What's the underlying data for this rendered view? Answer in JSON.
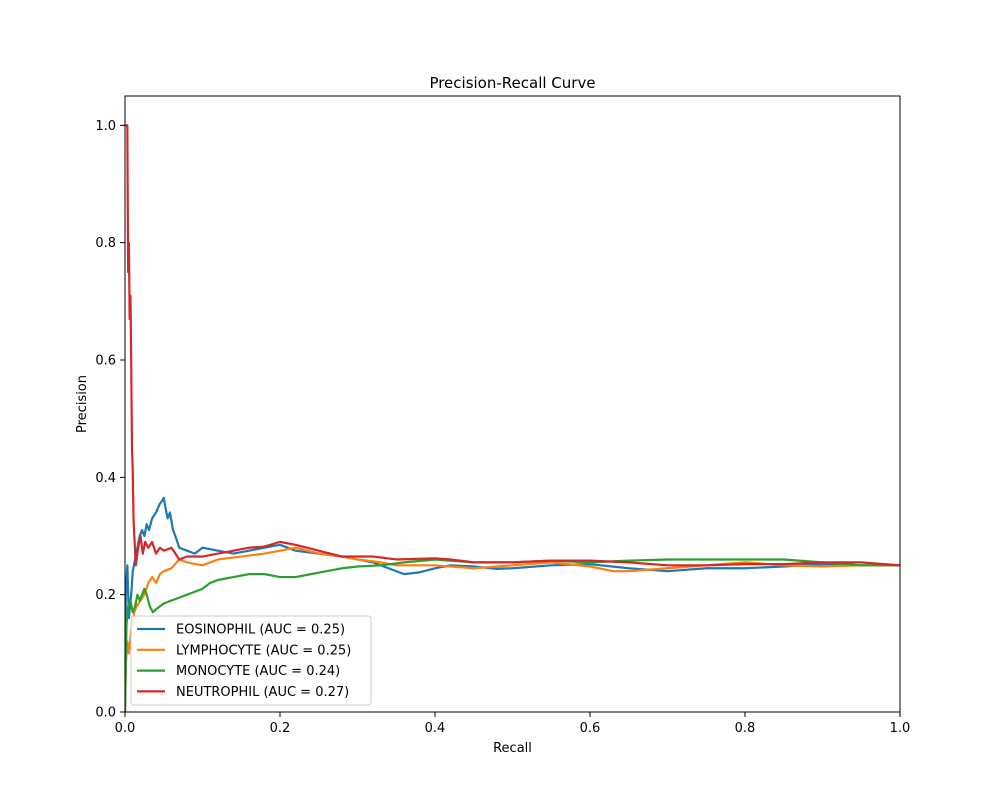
{
  "chart_data": {
    "type": "line",
    "title": "Precision-Recall Curve",
    "xlabel": "Recall",
    "ylabel": "Precision",
    "xlim": [
      0.0,
      1.0
    ],
    "ylim": [
      0.0,
      1.05
    ],
    "xticks": [
      "0.0",
      "0.2",
      "0.4",
      "0.6",
      "0.8",
      "1.0"
    ],
    "yticks": [
      "0.0",
      "0.2",
      "0.4",
      "0.6",
      "0.8",
      "1.0"
    ],
    "grid": false,
    "legend_position": "lower-left",
    "series": [
      {
        "name": "EOSINOPHIL (AUC = 0.25)",
        "color": "#1f77b4",
        "points": [
          [
            0.0,
            0.0
          ],
          [
            0.001,
            0.2
          ],
          [
            0.003,
            0.25
          ],
          [
            0.005,
            0.16
          ],
          [
            0.008,
            0.2
          ],
          [
            0.01,
            0.24
          ],
          [
            0.013,
            0.26
          ],
          [
            0.016,
            0.28
          ],
          [
            0.019,
            0.3
          ],
          [
            0.022,
            0.31
          ],
          [
            0.025,
            0.3
          ],
          [
            0.028,
            0.32
          ],
          [
            0.031,
            0.31
          ],
          [
            0.035,
            0.33
          ],
          [
            0.04,
            0.34
          ],
          [
            0.045,
            0.355
          ],
          [
            0.048,
            0.36
          ],
          [
            0.05,
            0.365
          ],
          [
            0.052,
            0.35
          ],
          [
            0.055,
            0.33
          ],
          [
            0.058,
            0.34
          ],
          [
            0.062,
            0.31
          ],
          [
            0.065,
            0.3
          ],
          [
            0.07,
            0.28
          ],
          [
            0.08,
            0.275
          ],
          [
            0.09,
            0.27
          ],
          [
            0.1,
            0.28
          ],
          [
            0.12,
            0.275
          ],
          [
            0.14,
            0.27
          ],
          [
            0.16,
            0.275
          ],
          [
            0.18,
            0.28
          ],
          [
            0.2,
            0.285
          ],
          [
            0.22,
            0.275
          ],
          [
            0.25,
            0.27
          ],
          [
            0.28,
            0.265
          ],
          [
            0.3,
            0.26
          ],
          [
            0.32,
            0.255
          ],
          [
            0.34,
            0.245
          ],
          [
            0.36,
            0.235
          ],
          [
            0.38,
            0.238
          ],
          [
            0.4,
            0.245
          ],
          [
            0.42,
            0.25
          ],
          [
            0.45,
            0.248
          ],
          [
            0.48,
            0.244
          ],
          [
            0.5,
            0.245
          ],
          [
            0.55,
            0.25
          ],
          [
            0.6,
            0.252
          ],
          [
            0.65,
            0.245
          ],
          [
            0.7,
            0.24
          ],
          [
            0.75,
            0.245
          ],
          [
            0.8,
            0.245
          ],
          [
            0.85,
            0.248
          ],
          [
            0.9,
            0.252
          ],
          [
            0.95,
            0.25
          ],
          [
            1.0,
            0.25
          ]
        ]
      },
      {
        "name": "LYMPHOCYTE (AUC = 0.25)",
        "color": "#ff7f0e",
        "points": [
          [
            0.0,
            0.0
          ],
          [
            0.001,
            0.08
          ],
          [
            0.003,
            0.12
          ],
          [
            0.005,
            0.1
          ],
          [
            0.008,
            0.14
          ],
          [
            0.012,
            0.17
          ],
          [
            0.015,
            0.18
          ],
          [
            0.02,
            0.19
          ],
          [
            0.025,
            0.2
          ],
          [
            0.03,
            0.22
          ],
          [
            0.035,
            0.23
          ],
          [
            0.04,
            0.22
          ],
          [
            0.045,
            0.235
          ],
          [
            0.05,
            0.24
          ],
          [
            0.06,
            0.245
          ],
          [
            0.07,
            0.26
          ],
          [
            0.08,
            0.255
          ],
          [
            0.1,
            0.25
          ],
          [
            0.12,
            0.26
          ],
          [
            0.15,
            0.265
          ],
          [
            0.18,
            0.27
          ],
          [
            0.2,
            0.275
          ],
          [
            0.22,
            0.28
          ],
          [
            0.25,
            0.27
          ],
          [
            0.28,
            0.265
          ],
          [
            0.3,
            0.26
          ],
          [
            0.33,
            0.255
          ],
          [
            0.35,
            0.25
          ],
          [
            0.4,
            0.25
          ],
          [
            0.45,
            0.245
          ],
          [
            0.5,
            0.25
          ],
          [
            0.55,
            0.255
          ],
          [
            0.6,
            0.248
          ],
          [
            0.63,
            0.24
          ],
          [
            0.65,
            0.24
          ],
          [
            0.7,
            0.245
          ],
          [
            0.75,
            0.25
          ],
          [
            0.8,
            0.255
          ],
          [
            0.85,
            0.25
          ],
          [
            0.9,
            0.248
          ],
          [
            0.95,
            0.25
          ],
          [
            1.0,
            0.25
          ]
        ]
      },
      {
        "name": "MONOCYTE (AUC = 0.24)",
        "color": "#2ca02c",
        "points": [
          [
            0.0,
            0.0
          ],
          [
            0.002,
            0.15
          ],
          [
            0.004,
            0.18
          ],
          [
            0.007,
            0.19
          ],
          [
            0.01,
            0.17
          ],
          [
            0.013,
            0.18
          ],
          [
            0.016,
            0.2
          ],
          [
            0.019,
            0.19
          ],
          [
            0.022,
            0.2
          ],
          [
            0.025,
            0.21
          ],
          [
            0.028,
            0.2
          ],
          [
            0.032,
            0.18
          ],
          [
            0.036,
            0.17
          ],
          [
            0.04,
            0.175
          ],
          [
            0.045,
            0.18
          ],
          [
            0.05,
            0.185
          ],
          [
            0.06,
            0.19
          ],
          [
            0.07,
            0.195
          ],
          [
            0.08,
            0.2
          ],
          [
            0.09,
            0.205
          ],
          [
            0.1,
            0.21
          ],
          [
            0.11,
            0.22
          ],
          [
            0.12,
            0.225
          ],
          [
            0.14,
            0.23
          ],
          [
            0.16,
            0.235
          ],
          [
            0.18,
            0.235
          ],
          [
            0.2,
            0.23
          ],
          [
            0.22,
            0.23
          ],
          [
            0.24,
            0.235
          ],
          [
            0.26,
            0.24
          ],
          [
            0.28,
            0.245
          ],
          [
            0.3,
            0.248
          ],
          [
            0.33,
            0.25
          ],
          [
            0.36,
            0.255
          ],
          [
            0.4,
            0.26
          ],
          [
            0.45,
            0.255
          ],
          [
            0.5,
            0.255
          ],
          [
            0.55,
            0.258
          ],
          [
            0.6,
            0.255
          ],
          [
            0.65,
            0.258
          ],
          [
            0.7,
            0.26
          ],
          [
            0.75,
            0.26
          ],
          [
            0.8,
            0.26
          ],
          [
            0.85,
            0.26
          ],
          [
            0.9,
            0.255
          ],
          [
            0.95,
            0.25
          ],
          [
            1.0,
            0.25
          ]
        ]
      },
      {
        "name": "NEUTROPHIL (AUC = 0.27)",
        "color": "#d62728",
        "points": [
          [
            0.0,
            1.0
          ],
          [
            0.003,
            1.0
          ],
          [
            0.004,
            0.75
          ],
          [
            0.005,
            0.8
          ],
          [
            0.006,
            0.67
          ],
          [
            0.007,
            0.71
          ],
          [
            0.008,
            0.6
          ],
          [
            0.009,
            0.45
          ],
          [
            0.01,
            0.41
          ],
          [
            0.011,
            0.33
          ],
          [
            0.012,
            0.3
          ],
          [
            0.014,
            0.25
          ],
          [
            0.017,
            0.28
          ],
          [
            0.02,
            0.3
          ],
          [
            0.023,
            0.27
          ],
          [
            0.026,
            0.29
          ],
          [
            0.03,
            0.28
          ],
          [
            0.035,
            0.29
          ],
          [
            0.04,
            0.27
          ],
          [
            0.045,
            0.28
          ],
          [
            0.05,
            0.275
          ],
          [
            0.06,
            0.28
          ],
          [
            0.07,
            0.26
          ],
          [
            0.08,
            0.265
          ],
          [
            0.1,
            0.265
          ],
          [
            0.12,
            0.27
          ],
          [
            0.14,
            0.275
          ],
          [
            0.16,
            0.28
          ],
          [
            0.18,
            0.282
          ],
          [
            0.2,
            0.29
          ],
          [
            0.22,
            0.285
          ],
          [
            0.25,
            0.275
          ],
          [
            0.28,
            0.265
          ],
          [
            0.3,
            0.265
          ],
          [
            0.32,
            0.265
          ],
          [
            0.35,
            0.26
          ],
          [
            0.4,
            0.262
          ],
          [
            0.42,
            0.26
          ],
          [
            0.45,
            0.255
          ],
          [
            0.5,
            0.255
          ],
          [
            0.55,
            0.258
          ],
          [
            0.6,
            0.258
          ],
          [
            0.65,
            0.255
          ],
          [
            0.7,
            0.25
          ],
          [
            0.75,
            0.25
          ],
          [
            0.8,
            0.252
          ],
          [
            0.85,
            0.252
          ],
          [
            0.9,
            0.255
          ],
          [
            0.95,
            0.255
          ],
          [
            1.0,
            0.25
          ]
        ]
      }
    ]
  }
}
